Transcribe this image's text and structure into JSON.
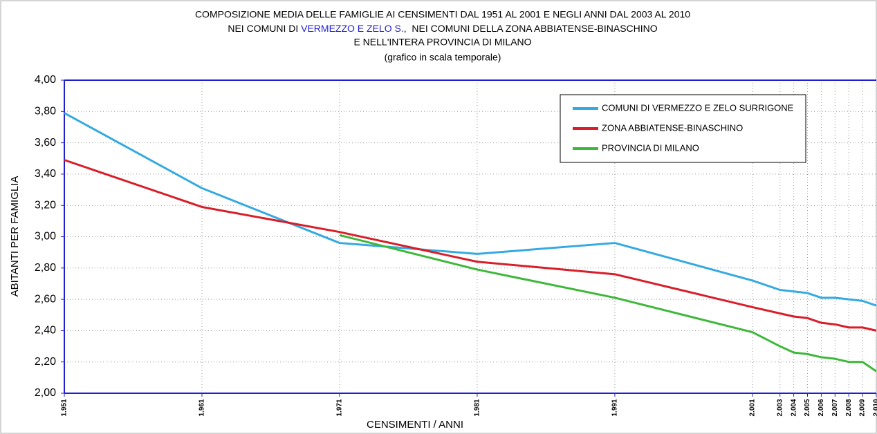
{
  "chart_data": {
    "type": "line",
    "title": [
      "COMPOSIZIONE MEDIA DELLE FAMIGLIE AI CENSIMENTI DAL 1951 AL 2001 E NEGLI ANNI DAL 2003 AL 2010",
      [
        "NEI COMUNI DI ",
        "VERMEZZO E ZELO S.",
        ",  NEI COMUNI DELLA ZONA ABBIATENSE-BINASCHINO"
      ],
      "E NELL'INTERA PROVINCIA DI MILANO"
    ],
    "subtitle": "(grafico in scala temporale)",
    "title_highlight_color": "#1f1fd0",
    "x_label": "CENSIMENTI / ANNI",
    "y_label": "ABITANTI PER FAMIGLIA",
    "x": [
      1951,
      1961,
      1971,
      1981,
      1991,
      2001,
      2003,
      2004,
      2005,
      2006,
      2007,
      2008,
      2009,
      2010
    ],
    "series": [
      {
        "name": "COMUNI DI VERMEZZO E ZELO SURRIGONE",
        "color": "#35a9e1",
        "values": [
          3.79,
          3.31,
          2.96,
          2.89,
          2.96,
          2.72,
          2.66,
          2.65,
          2.64,
          2.61,
          2.61,
          2.6,
          2.59,
          2.56
        ]
      },
      {
        "name": "ZONA ABBIATENSE-BINASCHINO",
        "color": "#d81e28",
        "values": [
          3.49,
          3.19,
          3.03,
          2.84,
          2.76,
          2.55,
          2.51,
          2.49,
          2.48,
          2.45,
          2.44,
          2.42,
          2.42,
          2.4
        ]
      },
      {
        "name": "PROVINCIA DI MILANO",
        "color": "#3db83a",
        "values": [
          null,
          null,
          3.01,
          2.79,
          2.61,
          2.39,
          2.3,
          2.26,
          2.25,
          2.23,
          2.22,
          2.2,
          2.2,
          2.14
        ]
      }
    ],
    "xlim": [
      1951,
      2010
    ],
    "xticks": [
      {
        "value": 1951,
        "label": "1.951"
      },
      {
        "value": 1961,
        "label": "1.961"
      },
      {
        "value": 1971,
        "label": "1.971"
      },
      {
        "value": 1981,
        "label": "1.981"
      },
      {
        "value": 1991,
        "label": "1.991"
      },
      {
        "value": 2001,
        "label": "2.001"
      },
      {
        "value": 2003,
        "label": "2.003"
      },
      {
        "value": 2004,
        "label": "2.004"
      },
      {
        "value": 2005,
        "label": "2.005"
      },
      {
        "value": 2006,
        "label": "2.006"
      },
      {
        "value": 2007,
        "label": "2.007"
      },
      {
        "value": 2008,
        "label": "2.008"
      },
      {
        "value": 2009,
        "label": "2.009"
      },
      {
        "value": 2010,
        "label": "2.010"
      }
    ],
    "ylim": [
      2,
      4
    ],
    "yticks": [
      {
        "value": 2,
        "label": "2,00"
      },
      {
        "value": 2.2,
        "label": "2,20"
      },
      {
        "value": 2.4,
        "label": "2,40"
      },
      {
        "value": 2.6,
        "label": "2,60"
      },
      {
        "value": 2.8,
        "label": "2,80"
      },
      {
        "value": 3,
        "label": "3,00"
      },
      {
        "value": 3.2,
        "label": "3,20"
      },
      {
        "value": 3.4,
        "label": "3,40"
      },
      {
        "value": 3.6,
        "label": "3,60"
      },
      {
        "value": 3.8,
        "label": "3,80"
      },
      {
        "value": 4,
        "label": "4,00"
      }
    ],
    "grid": true,
    "legend": "top-right"
  }
}
